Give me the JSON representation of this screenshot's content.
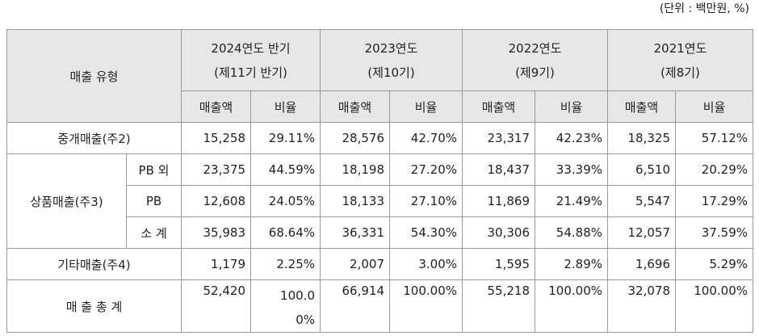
{
  "unit_note": "(단위 : 백만원, %)",
  "header": {
    "type_label": "매출 유형",
    "periods": [
      {
        "line1": "2024연도 반기",
        "line2": "(제11기 반기)"
      },
      {
        "line1": "2023연도",
        "line2": "(제10기)"
      },
      {
        "line1": "2022연도",
        "line2": "(제9기)"
      },
      {
        "line1": "2021연도",
        "line2": "(제8기)"
      }
    ],
    "sub": {
      "sales": "매출액",
      "ratio": "비율"
    }
  },
  "rows": {
    "brokerage": {
      "label": "중개매출(주2)",
      "values": [
        "15,258",
        "29.11%",
        "28,576",
        "42.70%",
        "23,317",
        "42.23%",
        "18,325",
        "57.12%"
      ]
    },
    "product_group_label": "상품매출(주3)",
    "pb_other": {
      "label": "PB 외",
      "values": [
        "23,375",
        "44.59%",
        "18,198",
        "27.20%",
        "18,437",
        "33.39%",
        "6,510",
        "20.29%"
      ]
    },
    "pb": {
      "label": "PB",
      "values": [
        "12,608",
        "24.05%",
        "18,133",
        "27.10%",
        "11,869",
        "21.49%",
        "5,547",
        "17.29%"
      ]
    },
    "subtotal": {
      "label": "소 계",
      "values": [
        "35,983",
        "68.64%",
        "36,331",
        "54.30%",
        "30,306",
        "54.88%",
        "12,057",
        "37.59%"
      ]
    },
    "other": {
      "label": "기타매출(주4)",
      "values": [
        "1,179",
        "2.25%",
        "2,007",
        "3.00%",
        "1,595",
        "2.89%",
        "1,696",
        "5.29%"
      ]
    },
    "total": {
      "label": "매 출 총 계",
      "values": [
        "52,420",
        "100.0",
        "66,914",
        "100.00%",
        "55,218",
        "100.00%",
        "32,078",
        "100.00%"
      ],
      "ratio_2024_wrap": "0%"
    }
  }
}
